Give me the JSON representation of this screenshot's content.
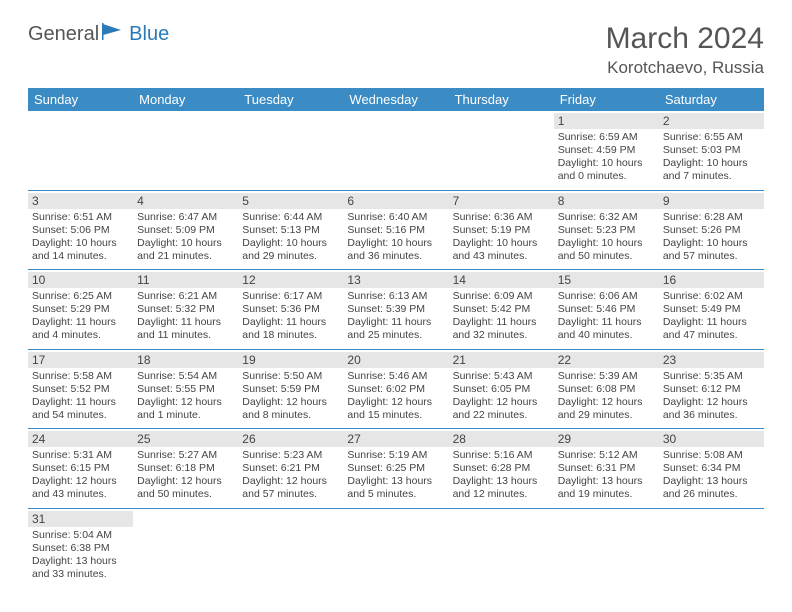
{
  "logo": {
    "word1": "General",
    "word2": "Blue"
  },
  "title": "March 2024",
  "location": "Korotchaevo, Russia",
  "header_bg": "#3b8bc4",
  "header_fg": "#ffffff",
  "daynum_bg": "#e6e6e6",
  "text_color": "#444444",
  "border_color": "#3b8bc4",
  "weekdays": [
    "Sunday",
    "Monday",
    "Tuesday",
    "Wednesday",
    "Thursday",
    "Friday",
    "Saturday"
  ],
  "lead_blanks": 5,
  "days": [
    {
      "n": "1",
      "sr": "6:59 AM",
      "ss": "4:59 PM",
      "dl": "10 hours and 0 minutes."
    },
    {
      "n": "2",
      "sr": "6:55 AM",
      "ss": "5:03 PM",
      "dl": "10 hours and 7 minutes."
    },
    {
      "n": "3",
      "sr": "6:51 AM",
      "ss": "5:06 PM",
      "dl": "10 hours and 14 minutes."
    },
    {
      "n": "4",
      "sr": "6:47 AM",
      "ss": "5:09 PM",
      "dl": "10 hours and 21 minutes."
    },
    {
      "n": "5",
      "sr": "6:44 AM",
      "ss": "5:13 PM",
      "dl": "10 hours and 29 minutes."
    },
    {
      "n": "6",
      "sr": "6:40 AM",
      "ss": "5:16 PM",
      "dl": "10 hours and 36 minutes."
    },
    {
      "n": "7",
      "sr": "6:36 AM",
      "ss": "5:19 PM",
      "dl": "10 hours and 43 minutes."
    },
    {
      "n": "8",
      "sr": "6:32 AM",
      "ss": "5:23 PM",
      "dl": "10 hours and 50 minutes."
    },
    {
      "n": "9",
      "sr": "6:28 AM",
      "ss": "5:26 PM",
      "dl": "10 hours and 57 minutes."
    },
    {
      "n": "10",
      "sr": "6:25 AM",
      "ss": "5:29 PM",
      "dl": "11 hours and 4 minutes."
    },
    {
      "n": "11",
      "sr": "6:21 AM",
      "ss": "5:32 PM",
      "dl": "11 hours and 11 minutes."
    },
    {
      "n": "12",
      "sr": "6:17 AM",
      "ss": "5:36 PM",
      "dl": "11 hours and 18 minutes."
    },
    {
      "n": "13",
      "sr": "6:13 AM",
      "ss": "5:39 PM",
      "dl": "11 hours and 25 minutes."
    },
    {
      "n": "14",
      "sr": "6:09 AM",
      "ss": "5:42 PM",
      "dl": "11 hours and 32 minutes."
    },
    {
      "n": "15",
      "sr": "6:06 AM",
      "ss": "5:46 PM",
      "dl": "11 hours and 40 minutes."
    },
    {
      "n": "16",
      "sr": "6:02 AM",
      "ss": "5:49 PM",
      "dl": "11 hours and 47 minutes."
    },
    {
      "n": "17",
      "sr": "5:58 AM",
      "ss": "5:52 PM",
      "dl": "11 hours and 54 minutes."
    },
    {
      "n": "18",
      "sr": "5:54 AM",
      "ss": "5:55 PM",
      "dl": "12 hours and 1 minute."
    },
    {
      "n": "19",
      "sr": "5:50 AM",
      "ss": "5:59 PM",
      "dl": "12 hours and 8 minutes."
    },
    {
      "n": "20",
      "sr": "5:46 AM",
      "ss": "6:02 PM",
      "dl": "12 hours and 15 minutes."
    },
    {
      "n": "21",
      "sr": "5:43 AM",
      "ss": "6:05 PM",
      "dl": "12 hours and 22 minutes."
    },
    {
      "n": "22",
      "sr": "5:39 AM",
      "ss": "6:08 PM",
      "dl": "12 hours and 29 minutes."
    },
    {
      "n": "23",
      "sr": "5:35 AM",
      "ss": "6:12 PM",
      "dl": "12 hours and 36 minutes."
    },
    {
      "n": "24",
      "sr": "5:31 AM",
      "ss": "6:15 PM",
      "dl": "12 hours and 43 minutes."
    },
    {
      "n": "25",
      "sr": "5:27 AM",
      "ss": "6:18 PM",
      "dl": "12 hours and 50 minutes."
    },
    {
      "n": "26",
      "sr": "5:23 AM",
      "ss": "6:21 PM",
      "dl": "12 hours and 57 minutes."
    },
    {
      "n": "27",
      "sr": "5:19 AM",
      "ss": "6:25 PM",
      "dl": "13 hours and 5 minutes."
    },
    {
      "n": "28",
      "sr": "5:16 AM",
      "ss": "6:28 PM",
      "dl": "13 hours and 12 minutes."
    },
    {
      "n": "29",
      "sr": "5:12 AM",
      "ss": "6:31 PM",
      "dl": "13 hours and 19 minutes."
    },
    {
      "n": "30",
      "sr": "5:08 AM",
      "ss": "6:34 PM",
      "dl": "13 hours and 26 minutes."
    },
    {
      "n": "31",
      "sr": "5:04 AM",
      "ss": "6:38 PM",
      "dl": "13 hours and 33 minutes."
    }
  ],
  "labels": {
    "sunrise": "Sunrise:",
    "sunset": "Sunset:",
    "daylight": "Daylight:"
  }
}
